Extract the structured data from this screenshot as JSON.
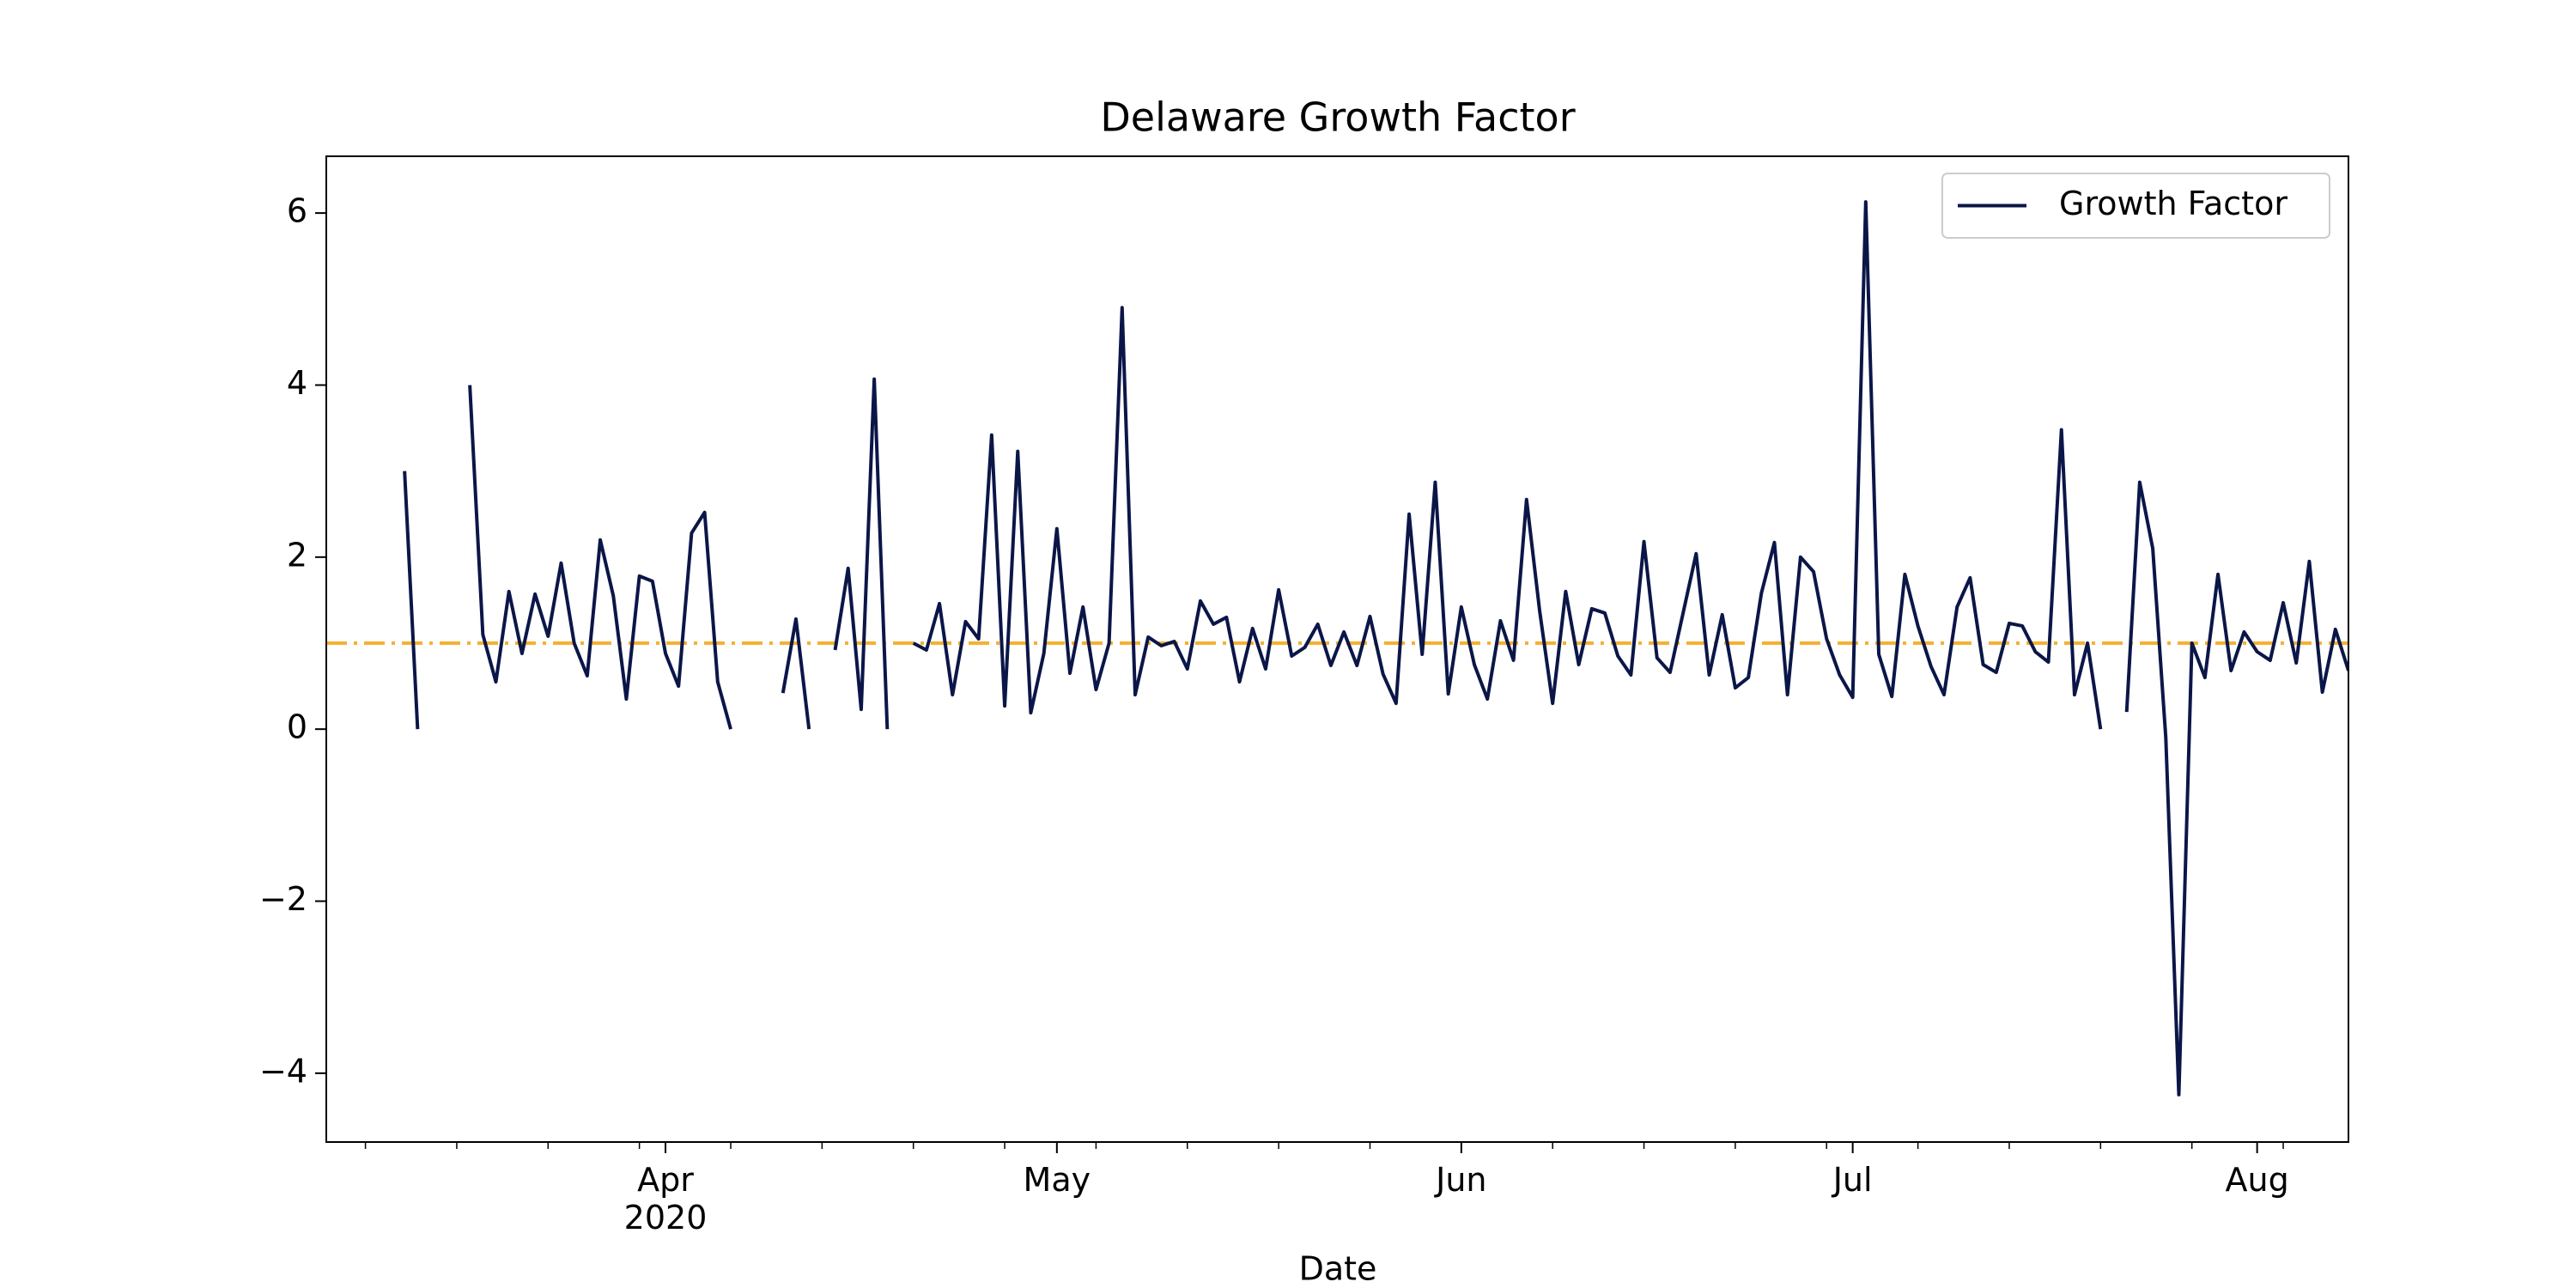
{
  "chart_data": {
    "type": "line",
    "title": "Delaware Growth Factor",
    "xlabel": "Date",
    "x": [
      72,
      73,
      74,
      75,
      76,
      77,
      78,
      79,
      80,
      81,
      82,
      83,
      84,
      85,
      86,
      87,
      88,
      89,
      90,
      91,
      92,
      93,
      94,
      95,
      96,
      97,
      98,
      99,
      100,
      101,
      102,
      103,
      104,
      105,
      106,
      107,
      108,
      109,
      110,
      111,
      112,
      113,
      114,
      115,
      116,
      117,
      118,
      119,
      120,
      121,
      122,
      123,
      124,
      125,
      126,
      127,
      128,
      129,
      130,
      131,
      132,
      133,
      134,
      135,
      136,
      137,
      138,
      139,
      140,
      141,
      142,
      143,
      144,
      145,
      146,
      147,
      148,
      149,
      150,
      151,
      152,
      153,
      154,
      155,
      156,
      157,
      158,
      159,
      160,
      161,
      162,
      163,
      164,
      165,
      166,
      167,
      168,
      169,
      170,
      171,
      172,
      173,
      174,
      175,
      176,
      177,
      178,
      179,
      180,
      181,
      182,
      183,
      184,
      185,
      186,
      187,
      188,
      189,
      190,
      191,
      192,
      193,
      194,
      195,
      196,
      197,
      198,
      199,
      200,
      201,
      202,
      203,
      204,
      205,
      206,
      207,
      208,
      209,
      210,
      211,
      212,
      213,
      214,
      215,
      216,
      217,
      218,
      219,
      220,
      221
    ],
    "series": [
      {
        "name": "Growth Factor",
        "color": "#0b1648",
        "values": [
          3.0,
          0,
          null,
          null,
          null,
          4.0,
          1.1,
          0.55,
          1.6,
          0.88,
          1.57,
          1.08,
          1.93,
          1.0,
          0.62,
          2.2,
          1.55,
          0.35,
          1.78,
          1.72,
          0.88,
          0.5,
          2.28,
          2.52,
          0.55,
          0,
          null,
          null,
          null,
          0.42,
          1.28,
          0,
          null,
          0.92,
          1.87,
          0.23,
          4.07,
          0,
          null,
          1.0,
          0.92,
          1.46,
          0.4,
          1.25,
          1.05,
          3.42,
          0.27,
          3.23,
          0.19,
          0.88,
          2.33,
          0.65,
          1.42,
          0.46,
          1.0,
          4.9,
          0.4,
          1.07,
          0.97,
          1.02,
          0.7,
          1.49,
          1.22,
          1.3,
          0.55,
          1.17,
          0.7,
          1.62,
          0.85,
          0.95,
          1.22,
          0.74,
          1.13,
          0.74,
          1.31,
          0.64,
          0.3,
          2.5,
          0.87,
          2.87,
          0.41,
          1.42,
          0.75,
          0.35,
          1.26,
          0.8,
          2.67,
          1.38,
          0.3,
          1.6,
          0.75,
          1.4,
          1.35,
          0.85,
          0.63,
          2.18,
          0.83,
          0.66,
          1.35,
          2.04,
          0.63,
          1.33,
          0.48,
          0.6,
          1.58,
          2.17,
          0.4,
          2.0,
          1.83,
          1.05,
          0.63,
          0.37,
          6.13,
          0.87,
          0.38,
          1.8,
          1.2,
          0.73,
          0.4,
          1.42,
          1.76,
          0.75,
          0.66,
          1.23,
          1.2,
          0.9,
          0.78,
          3.48,
          0.4,
          1.0,
          0,
          null,
          0.2,
          2.87,
          2.1,
          -0.1,
          -4.25,
          1.0,
          0.6,
          1.8,
          0.68,
          1.13,
          0.9,
          0.8,
          1.47,
          0.77,
          1.95,
          0.43,
          1.16,
          0.68
        ]
      }
    ],
    "hline": {
      "value": 1,
      "color": "#f5b132"
    },
    "xlim": [
      66,
      221
    ],
    "xticks": [
      {
        "value": 92,
        "label": "Apr\n2020"
      },
      {
        "value": 122,
        "label": "May"
      },
      {
        "value": 153,
        "label": "Jun"
      },
      {
        "value": 183,
        "label": "Jul"
      },
      {
        "value": 214,
        "label": "Aug"
      }
    ],
    "xminorticks": [
      69,
      76,
      83,
      90,
      97,
      104,
      111,
      118,
      125,
      132,
      139,
      146,
      153,
      160,
      167,
      174,
      181,
      188,
      195,
      202,
      209,
      216
    ],
    "ylim": [
      -4.8,
      6.66
    ],
    "yticks": [
      {
        "value": -4,
        "label": "−4"
      },
      {
        "value": -2,
        "label": "−2"
      },
      0,
      2,
      4,
      6
    ],
    "legend": "upper right"
  }
}
